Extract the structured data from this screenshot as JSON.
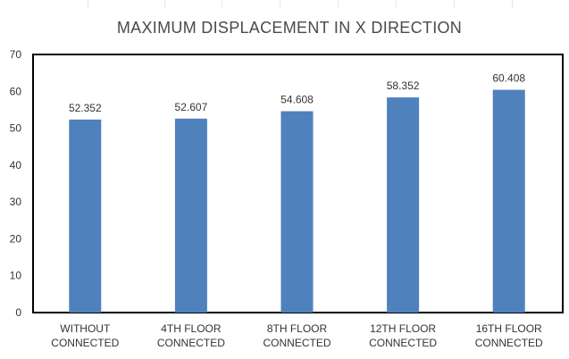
{
  "colors": {
    "bar": "#4f81bd",
    "frame": "#000000",
    "gridline": "#e6e6e6",
    "text": "#333333",
    "title": "#4a4a4a"
  },
  "chart_data": {
    "type": "bar",
    "title": "MAXIMUM DISPLACEMENT IN X DIRECTION",
    "xlabel": "",
    "ylabel": "",
    "categories": [
      [
        "WITHOUT",
        "CONNECTED"
      ],
      [
        "4TH FLOOR",
        "CONNECTED"
      ],
      [
        "8TH FLOOR",
        "CONNECTED"
      ],
      [
        "12TH FLOOR",
        "CONNECTED"
      ],
      [
        "16TH FLOOR",
        "CONNECTED"
      ]
    ],
    "values": [
      52.352,
      52.607,
      54.608,
      58.352,
      60.408
    ],
    "data_labels": [
      "52.352",
      "52.607",
      "54.608",
      "58.352",
      "60.408"
    ],
    "ylim": [
      0,
      70
    ],
    "yticks": [
      0,
      10,
      20,
      30,
      40,
      50,
      60,
      70
    ],
    "grid": false,
    "legend": "none"
  }
}
